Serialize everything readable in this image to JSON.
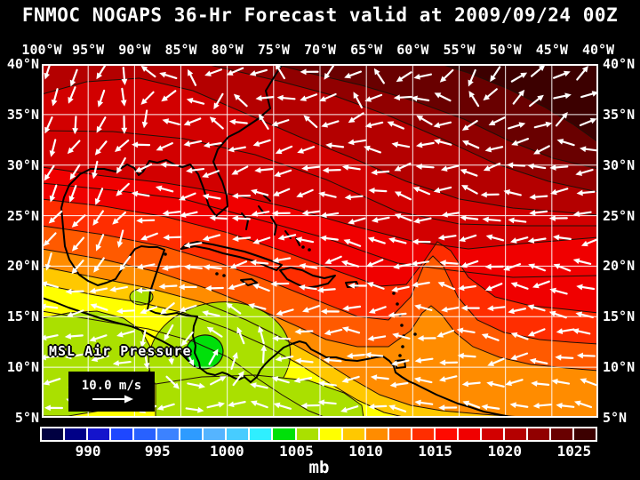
{
  "title": "FNMOC NOGAPS 36-Hr Forecast valid at 2009/09/24 00Z",
  "map": {
    "field_label": "MSL Air Pressure",
    "wind_legend": {
      "speed_label": "10.0 m/s"
    },
    "lon_labels": [
      "100°W",
      "95°W",
      "90°W",
      "85°W",
      "80°W",
      "75°W",
      "70°W",
      "65°W",
      "60°W",
      "55°W",
      "50°W",
      "45°W",
      "40°W"
    ],
    "lat_labels": [
      "40°N",
      "35°N",
      "30°N",
      "25°N",
      "20°N",
      "15°N",
      "10°N",
      "5°N"
    ],
    "grid_color": "#ffffff",
    "coast_color": "#000000",
    "contour_color": "#201008",
    "arrow_color": "#ffffff"
  },
  "colorbar": {
    "unit": "mb",
    "tick_labels": [
      "990",
      "995",
      "1000",
      "1005",
      "1010",
      "1015",
      "1020",
      "1025"
    ],
    "tick_cell_boundaries": [
      2,
      5,
      8,
      11,
      14,
      17,
      20,
      23
    ],
    "cell_colors": [
      "#000041",
      "#000087",
      "#1414cc",
      "#1e47ff",
      "#2861ff",
      "#3c82ff",
      "#2e9bff",
      "#55b4ff",
      "#47ccff",
      "#2fefff",
      "#00e00a",
      "#aae000",
      "#ffff00",
      "#ffc800",
      "#ff8c00",
      "#ff5a00",
      "#ff2d00",
      "#ff0a00",
      "#f00000",
      "#d20000",
      "#b40000",
      "#910000",
      "#690000",
      "#3c0000"
    ]
  }
}
